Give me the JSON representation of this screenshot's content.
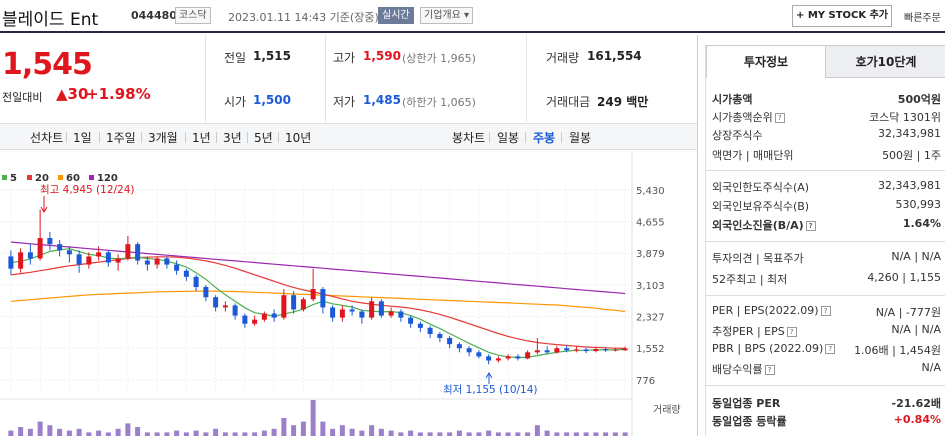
{
  "header": {
    "title": "블레이드 Ent",
    "code": "044480",
    "market": "코스닥",
    "datetime": "2023.01.11 14:43 기준(장중)",
    "realtime": "실시간",
    "company_info": "기업개요",
    "mystock": "+ MY STOCK 추가",
    "quick": "빠른주문"
  },
  "price": {
    "current": "1,545",
    "change_label": "전일대비",
    "change": "▲30",
    "change_pct": "+1.98%"
  },
  "stats": {
    "prev_close_label": "전일",
    "prev_close": "1,515",
    "high_label": "고가",
    "high": "1,590",
    "upper_limit": "(상한가 1,965)",
    "volume_label": "거래량",
    "volume": "161,554",
    "open_label": "시가",
    "open": "1,500",
    "low_label": "저가",
    "low": "1,485",
    "lower_limit": "(하한가 1,065)",
    "amount_label": "거래대금",
    "amount": "249 백만"
  },
  "tabs": {
    "line": "선차트",
    "d1": "1일",
    "w1": "1주일",
    "m3": "3개월",
    "y1": "1년",
    "y3": "3년",
    "y5": "5년",
    "y10": "10년",
    "candle": "봉차트",
    "daily": "일봉",
    "weekly": "주봉",
    "monthly": "월봉"
  },
  "legend": {
    "ma5": "5",
    "ma20": "20",
    "ma60": "60",
    "ma120": "120"
  },
  "annotations": {
    "high": "최고 4,945 (12/24)",
    "low": "최저 1,155 (10/14)",
    "volume": "거래량"
  },
  "chart_data": {
    "type": "candlestick",
    "title": "블레이드 Ent 주봉",
    "y_ticks": [
      5430,
      4655,
      3879,
      3103,
      2327,
      1552,
      776
    ],
    "y_tick_labels": [
      "5,430",
      "4,655",
      "3,879",
      "3,103",
      "2,327",
      "1,552",
      "776"
    ],
    "ylim": [
      600,
      5550
    ],
    "series_colors": {
      "ma5": "#4caf50",
      "ma20": "#e53935",
      "ma60": "#ff9800",
      "ma120": "#9c27b0"
    },
    "candles": [
      [
        3800,
        3500,
        3950,
        3350
      ],
      [
        3500,
        3900,
        4000,
        3400
      ],
      [
        3900,
        3750,
        4100,
        3600
      ],
      [
        3750,
        4250,
        4945,
        3700
      ],
      [
        4250,
        4100,
        4400,
        3950
      ],
      [
        4100,
        3950,
        4200,
        3800
      ],
      [
        3950,
        3850,
        4050,
        3650
      ],
      [
        3850,
        3600,
        3950,
        3400
      ],
      [
        3600,
        3800,
        3900,
        3500
      ],
      [
        3800,
        3900,
        4050,
        3700
      ],
      [
        3900,
        3650,
        3950,
        3550
      ],
      [
        3650,
        3750,
        3850,
        3450
      ],
      [
        3750,
        4100,
        4300,
        3700
      ],
      [
        4100,
        3700,
        4150,
        3600
      ],
      [
        3700,
        3600,
        3800,
        3450
      ],
      [
        3600,
        3750,
        3800,
        3500
      ],
      [
        3750,
        3600,
        3800,
        3500
      ],
      [
        3600,
        3450,
        3700,
        3350
      ],
      [
        3450,
        3300,
        3500,
        3200
      ],
      [
        3300,
        3050,
        3350,
        2950
      ],
      [
        3050,
        2800,
        3100,
        2700
      ],
      [
        2800,
        2550,
        2850,
        2450
      ],
      [
        2550,
        2600,
        2700,
        2450
      ],
      [
        2600,
        2350,
        2650,
        2250
      ],
      [
        2350,
        2150,
        2400,
        2050
      ],
      [
        2150,
        2250,
        2350,
        2100
      ],
      [
        2250,
        2400,
        2450,
        2200
      ],
      [
        2400,
        2300,
        2500,
        2200
      ],
      [
        2300,
        2850,
        3000,
        2250
      ],
      [
        2850,
        2500,
        2950,
        2400
      ],
      [
        2500,
        2750,
        2800,
        2450
      ],
      [
        2750,
        3000,
        3500,
        2700
      ],
      [
        3000,
        2550,
        3050,
        2400
      ],
      [
        2550,
        2300,
        2600,
        2200
      ],
      [
        2300,
        2500,
        2600,
        2200
      ],
      [
        2500,
        2450,
        2600,
        2350
      ],
      [
        2450,
        2300,
        2500,
        2150
      ],
      [
        2300,
        2700,
        2800,
        2250
      ],
      [
        2700,
        2350,
        2750,
        2300
      ],
      [
        2350,
        2450,
        2550,
        2300
      ],
      [
        2450,
        2300,
        2500,
        2200
      ],
      [
        2300,
        2150,
        2350,
        2050
      ],
      [
        2150,
        2050,
        2200,
        1950
      ],
      [
        2050,
        1900,
        2100,
        1800
      ],
      [
        1900,
        1800,
        1950,
        1700
      ],
      [
        1800,
        1650,
        1850,
        1550
      ],
      [
        1650,
        1550,
        1700,
        1450
      ],
      [
        1550,
        1450,
        1600,
        1350
      ],
      [
        1450,
        1350,
        1500,
        1300
      ],
      [
        1350,
        1250,
        1400,
        1155
      ],
      [
        1250,
        1300,
        1350,
        1200
      ],
      [
        1300,
        1350,
        1400,
        1250
      ],
      [
        1350,
        1300,
        1400,
        1250
      ],
      [
        1300,
        1450,
        1500,
        1280
      ],
      [
        1450,
        1500,
        1800,
        1400
      ],
      [
        1500,
        1450,
        1600,
        1400
      ],
      [
        1450,
        1550,
        1600,
        1420
      ],
      [
        1550,
        1500,
        1620,
        1450
      ],
      [
        1500,
        1520,
        1600,
        1450
      ],
      [
        1520,
        1480,
        1560,
        1430
      ],
      [
        1480,
        1530,
        1580,
        1450
      ],
      [
        1530,
        1500,
        1570,
        1460
      ],
      [
        1500,
        1515,
        1560,
        1470
      ],
      [
        1500,
        1545,
        1590,
        1485
      ]
    ],
    "ma5": [
      3650,
      3680,
      3740,
      3830,
      3920,
      3960,
      3990,
      3920,
      3850,
      3820,
      3760,
      3740,
      3760,
      3780,
      3750,
      3730,
      3690,
      3620,
      3540,
      3400,
      3240,
      3040,
      2860,
      2700,
      2540,
      2420,
      2380,
      2330,
      2390,
      2440,
      2510,
      2620,
      2700,
      2640,
      2600,
      2560,
      2480,
      2460,
      2440,
      2450,
      2420,
      2350,
      2260,
      2140,
      2030,
      1910,
      1790,
      1670,
      1560,
      1450,
      1380,
      1340,
      1320,
      1330,
      1370,
      1410,
      1450,
      1480,
      1500,
      1500,
      1510,
      1510,
      1510,
      1520
    ],
    "ma20": [
      3350,
      3380,
      3410,
      3450,
      3490,
      3530,
      3570,
      3600,
      3630,
      3660,
      3690,
      3720,
      3750,
      3770,
      3780,
      3790,
      3790,
      3780,
      3760,
      3730,
      3690,
      3640,
      3580,
      3510,
      3430,
      3350,
      3270,
      3190,
      3110,
      3040,
      2980,
      2930,
      2880,
      2820,
      2760,
      2700,
      2660,
      2630,
      2600,
      2580,
      2560,
      2530,
      2490,
      2440,
      2380,
      2310,
      2230,
      2150,
      2070,
      1990,
      1910,
      1840,
      1780,
      1730,
      1690,
      1660,
      1640,
      1620,
      1600,
      1580,
      1570,
      1560,
      1550,
      1545
    ],
    "ma60": [
      2700,
      2720,
      2740,
      2760,
      2780,
      2800,
      2820,
      2840,
      2860,
      2870,
      2880,
      2890,
      2900,
      2910,
      2920,
      2930,
      2935,
      2940,
      2945,
      2950,
      2950,
      2950,
      2945,
      2940,
      2930,
      2920,
      2910,
      2900,
      2890,
      2880,
      2870,
      2860,
      2850,
      2840,
      2830,
      2820,
      2810,
      2800,
      2790,
      2780,
      2770,
      2760,
      2750,
      2740,
      2730,
      2720,
      2710,
      2700,
      2690,
      2680,
      2670,
      2660,
      2650,
      2640,
      2630,
      2620,
      2610,
      2590,
      2570,
      2550,
      2530,
      2500,
      2480,
      2450
    ],
    "ma120": [
      4150,
      4130,
      4110,
      4090,
      4070,
      4050,
      4030,
      4010,
      3990,
      3970,
      3950,
      3930,
      3910,
      3890,
      3870,
      3850,
      3830,
      3810,
      3790,
      3770,
      3750,
      3730,
      3710,
      3690,
      3670,
      3650,
      3630,
      3610,
      3590,
      3570,
      3550,
      3530,
      3510,
      3490,
      3470,
      3450,
      3430,
      3410,
      3390,
      3370,
      3350,
      3330,
      3310,
      3290,
      3270,
      3250,
      3230,
      3210,
      3190,
      3170,
      3150,
      3130,
      3110,
      3090,
      3070,
      3050,
      3030,
      3010,
      2990,
      2970,
      2950,
      2930,
      2910,
      2890
    ],
    "volume": [
      0.15,
      0.25,
      0.2,
      0.4,
      0.3,
      0.2,
      0.15,
      0.2,
      0.1,
      0.15,
      0.1,
      0.2,
      0.35,
      0.25,
      0.1,
      0.1,
      0.1,
      0.15,
      0.1,
      0.15,
      0.1,
      0.2,
      0.1,
      0.1,
      0.1,
      0.1,
      0.15,
      0.2,
      0.5,
      0.3,
      0.4,
      1.0,
      0.4,
      0.2,
      0.3,
      0.2,
      0.15,
      0.3,
      0.2,
      0.15,
      0.1,
      0.15,
      0.1,
      0.1,
      0.1,
      0.1,
      0.15,
      0.1,
      0.1,
      0.15,
      0.1,
      0.1,
      0.1,
      0.1,
      0.3,
      0.15,
      0.1,
      0.1,
      0.1,
      0.1,
      0.1,
      0.1,
      0.1,
      0.1
    ]
  },
  "invest": {
    "tab1": "투자정보",
    "tab2": "호가10단계",
    "market_cap_label": "시가총액",
    "market_cap": "500억원",
    "rank_label": "시가총액순위",
    "rank": "코스닥 1301위",
    "shares_label": "상장주식수",
    "shares": "32,343,981",
    "face_label": "액면가 | 매매단위",
    "face": "500원 | 1주",
    "foreign_limit_label": "외국인한도주식수(A)",
    "foreign_limit": "32,343,981",
    "foreign_hold_label": "외국인보유주식수(B)",
    "foreign_hold": "530,993",
    "foreign_ratio_label": "외국인소진율(B/A)",
    "foreign_ratio": "1.64%",
    "opinion_label": "투자의견 | 목표주가",
    "opinion": "N/A | N/A",
    "w52_label": "52주최고 | 최저",
    "w52": "4,260 | 1,155",
    "per_label": "PER | EPS(2022.09)",
    "per": "N/A | -777원",
    "est_per_label": "추정PER | EPS",
    "est_per": "N/A | N/A",
    "pbr_label": "PBR | BPS (2022.09)",
    "pbr": "1.06배 | 1,454원",
    "div_label": "배당수익률",
    "div": "N/A",
    "ind_per_label": "동일업종 PER",
    "ind_per": "-21.62배",
    "ind_rate_label": "동일업종 등락률",
    "ind_rate": "+0.84%"
  }
}
